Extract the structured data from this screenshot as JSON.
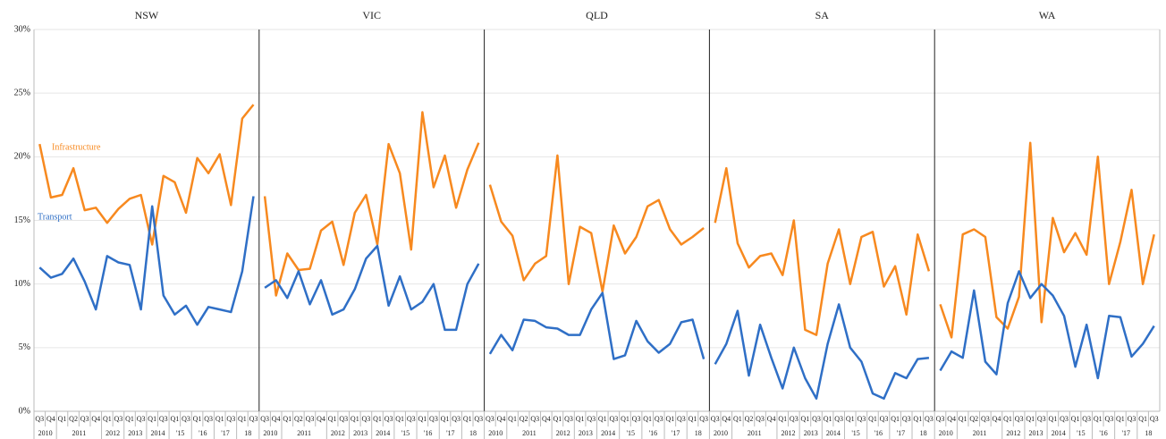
{
  "chart_data": [
    {
      "type": "line",
      "title": "NSW",
      "categories": [
        "Q3",
        "Q4",
        "Q1",
        "Q2",
        "Q3",
        "Q4",
        "Q1",
        "Q3",
        "Q1",
        "Q3",
        "Q1",
        "Q3",
        "Q1",
        "Q3",
        "Q1",
        "Q3",
        "Q1",
        "Q3",
        "Q1",
        "Q3"
      ],
      "year_labels": [
        "2010",
        null,
        "2011",
        null,
        null,
        null,
        "2012",
        null,
        "2013",
        null,
        "2014",
        null,
        "'15",
        null,
        "'16",
        null,
        "'17",
        null,
        "18",
        null
      ],
      "ylim": [
        0,
        30
      ],
      "yticks": [
        {
          "value": 0,
          "label": "0%"
        },
        {
          "value": 5,
          "label": "5%"
        },
        {
          "value": 10,
          "label": "10%"
        },
        {
          "value": 15,
          "label": "15%"
        },
        {
          "value": 20,
          "label": "20%"
        },
        {
          "value": 25,
          "label": "25%"
        },
        {
          "value": 30,
          "label": "30%"
        }
      ],
      "grid": true,
      "series": [
        {
          "name": "Infrastructure",
          "color": "#f7891f",
          "values": [
            21.0,
            16.8,
            17.0,
            19.1,
            15.8,
            16.0,
            14.8,
            15.9,
            16.7,
            17.0,
            13.1,
            18.5,
            18.0,
            15.6,
            19.9,
            18.7,
            20.2,
            16.2,
            23.0,
            24.1
          ]
        },
        {
          "name": "Transport",
          "color": "#2f6fc6",
          "values": [
            11.3,
            10.5,
            10.8,
            12.0,
            10.2,
            8.0,
            12.2,
            11.7,
            11.5,
            8.0,
            16.1,
            9.1,
            7.6,
            8.3,
            6.8,
            8.2,
            8.0,
            7.8,
            11.0,
            16.9
          ]
        }
      ]
    },
    {
      "type": "line",
      "title": "VIC",
      "categories": [
        "Q3",
        "Q4",
        "Q1",
        "Q2",
        "Q3",
        "Q4",
        "Q1",
        "Q3",
        "Q1",
        "Q3",
        "Q1",
        "Q3",
        "Q1",
        "Q3",
        "Q1",
        "Q3",
        "Q1",
        "Q3",
        "Q1",
        "Q3"
      ],
      "year_labels": [
        "2010",
        null,
        "2011",
        null,
        null,
        null,
        "2012",
        null,
        "2013",
        null,
        "2014",
        null,
        "'15",
        null,
        "'16",
        null,
        "'17",
        null,
        "18",
        null
      ],
      "ylim": [
        0,
        30
      ],
      "yticks": [
        {
          "value": 0,
          "label": "0%"
        },
        {
          "value": 5,
          "label": "5%"
        },
        {
          "value": 10,
          "label": "10%"
        },
        {
          "value": 15,
          "label": "15%"
        },
        {
          "value": 20,
          "label": "20%"
        },
        {
          "value": 25,
          "label": "25%"
        },
        {
          "value": 30,
          "label": "30%"
        }
      ],
      "grid": true,
      "series": [
        {
          "name": "Infrastructure",
          "color": "#f7891f",
          "values": [
            16.9,
            9.1,
            12.4,
            11.1,
            11.2,
            14.2,
            14.9,
            11.5,
            15.6,
            17.0,
            13.1,
            21.0,
            18.7,
            12.7,
            23.5,
            17.6,
            20.1,
            16.0,
            19.0,
            21.1
          ]
        },
        {
          "name": "Transport",
          "color": "#2f6fc6",
          "values": [
            9.7,
            10.3,
            8.9,
            11.0,
            8.4,
            10.3,
            7.6,
            8.0,
            9.6,
            12.0,
            13.0,
            8.3,
            10.6,
            8.0,
            8.6,
            10.0,
            6.4,
            6.4,
            10.0,
            11.6
          ]
        }
      ]
    },
    {
      "type": "line",
      "title": "QLD",
      "categories": [
        "Q3",
        "Q4",
        "Q1",
        "Q2",
        "Q3",
        "Q4",
        "Q1",
        "Q3",
        "Q1",
        "Q3",
        "Q1",
        "Q3",
        "Q1",
        "Q3",
        "Q1",
        "Q3",
        "Q1",
        "Q3",
        "Q1",
        "Q3"
      ],
      "year_labels": [
        "2010",
        null,
        "2011",
        null,
        null,
        null,
        "2012",
        null,
        "2013",
        null,
        "2014",
        null,
        "'15",
        null,
        "'16",
        null,
        "'17",
        null,
        "18",
        null
      ],
      "ylim": [
        0,
        30
      ],
      "yticks": [
        {
          "value": 0,
          "label": "0%"
        },
        {
          "value": 5,
          "label": "5%"
        },
        {
          "value": 10,
          "label": "10%"
        },
        {
          "value": 15,
          "label": "15%"
        },
        {
          "value": 20,
          "label": "20%"
        },
        {
          "value": 25,
          "label": "25%"
        },
        {
          "value": 30,
          "label": "30%"
        }
      ],
      "grid": true,
      "series": [
        {
          "name": "Infrastructure",
          "color": "#f7891f",
          "values": [
            17.8,
            14.9,
            13.8,
            10.3,
            11.6,
            12.2,
            20.1,
            10.0,
            14.5,
            14.0,
            9.4,
            14.6,
            12.4,
            13.7,
            16.1,
            16.6,
            14.3,
            13.1,
            13.7,
            14.4
          ]
        },
        {
          "name": "Transport",
          "color": "#2f6fc6",
          "values": [
            4.5,
            6.0,
            4.8,
            7.2,
            7.1,
            6.6,
            6.5,
            6.0,
            6.0,
            8.0,
            9.3,
            4.1,
            4.4,
            7.1,
            5.5,
            4.6,
            5.3,
            7.0,
            7.2,
            4.1
          ]
        }
      ]
    },
    {
      "type": "line",
      "title": "SA",
      "categories": [
        "Q3",
        "Q4",
        "Q1",
        "Q2",
        "Q3",
        "Q4",
        "Q1",
        "Q3",
        "Q1",
        "Q3",
        "Q1",
        "Q3",
        "Q1",
        "Q3",
        "Q1",
        "Q3",
        "Q1",
        "Q3",
        "Q1",
        "Q3"
      ],
      "year_labels": [
        "2010",
        null,
        "2011",
        null,
        null,
        null,
        "2012",
        null,
        "2013",
        null,
        "2014",
        null,
        "'15",
        null,
        "'16",
        null,
        "'17",
        null,
        "18",
        null
      ],
      "ylim": [
        0,
        30
      ],
      "yticks": [
        {
          "value": 0,
          "label": "0%"
        },
        {
          "value": 5,
          "label": "5%"
        },
        {
          "value": 10,
          "label": "10%"
        },
        {
          "value": 15,
          "label": "15%"
        },
        {
          "value": 20,
          "label": "20%"
        },
        {
          "value": 25,
          "label": "25%"
        },
        {
          "value": 30,
          "label": "30%"
        }
      ],
      "grid": true,
      "series": [
        {
          "name": "Infrastructure",
          "color": "#f7891f",
          "values": [
            14.8,
            19.1,
            13.2,
            11.3,
            12.2,
            12.4,
            10.7,
            15.0,
            6.4,
            6.0,
            11.6,
            14.3,
            10.0,
            13.7,
            14.1,
            9.8,
            11.4,
            7.6,
            13.9,
            11.0
          ]
        },
        {
          "name": "Transport",
          "color": "#2f6fc6",
          "values": [
            3.7,
            5.3,
            7.9,
            2.8,
            6.8,
            4.2,
            1.8,
            5.0,
            2.6,
            1.0,
            5.3,
            8.4,
            5.0,
            3.9,
            1.4,
            1.0,
            3.0,
            2.6,
            4.1,
            4.2
          ]
        }
      ]
    },
    {
      "type": "line",
      "title": "WA",
      "categories": [
        "Q3",
        "Q4",
        "Q1",
        "Q2",
        "Q3",
        "Q4",
        "Q1",
        "Q3",
        "Q1",
        "Q3",
        "Q1",
        "Q3",
        "Q1",
        "Q3",
        "Q1",
        "Q3",
        "Q1",
        "Q3",
        "Q1",
        "Q3"
      ],
      "year_labels": [
        "2010",
        null,
        "2011",
        null,
        null,
        null,
        "2012",
        null,
        "2013",
        null,
        "2014",
        null,
        "'15",
        null,
        "'16",
        null,
        "'17",
        null,
        "18",
        null
      ],
      "ylim": [
        0,
        30
      ],
      "yticks": [
        {
          "value": 0,
          "label": "0%"
        },
        {
          "value": 5,
          "label": "5%"
        },
        {
          "value": 10,
          "label": "10%"
        },
        {
          "value": 15,
          "label": "15%"
        },
        {
          "value": 20,
          "label": "20%"
        },
        {
          "value": 25,
          "label": "25%"
        },
        {
          "value": 30,
          "label": "30%"
        }
      ],
      "grid": true,
      "series": [
        {
          "name": "Infrastructure",
          "color": "#f7891f",
          "values": [
            8.4,
            5.8,
            13.9,
            14.3,
            13.7,
            7.4,
            6.5,
            9.0,
            21.1,
            7.0,
            15.2,
            12.5,
            14.0,
            12.3,
            20.0,
            10.0,
            13.3,
            17.4,
            10.0,
            13.9
          ]
        },
        {
          "name": "Transport",
          "color": "#2f6fc6",
          "values": [
            3.2,
            4.7,
            4.2,
            9.5,
            3.9,
            2.9,
            8.5,
            11.0,
            8.9,
            10.0,
            9.1,
            7.5,
            3.5,
            6.8,
            2.6,
            7.5,
            7.4,
            4.3,
            5.3,
            6.7
          ]
        }
      ]
    }
  ]
}
